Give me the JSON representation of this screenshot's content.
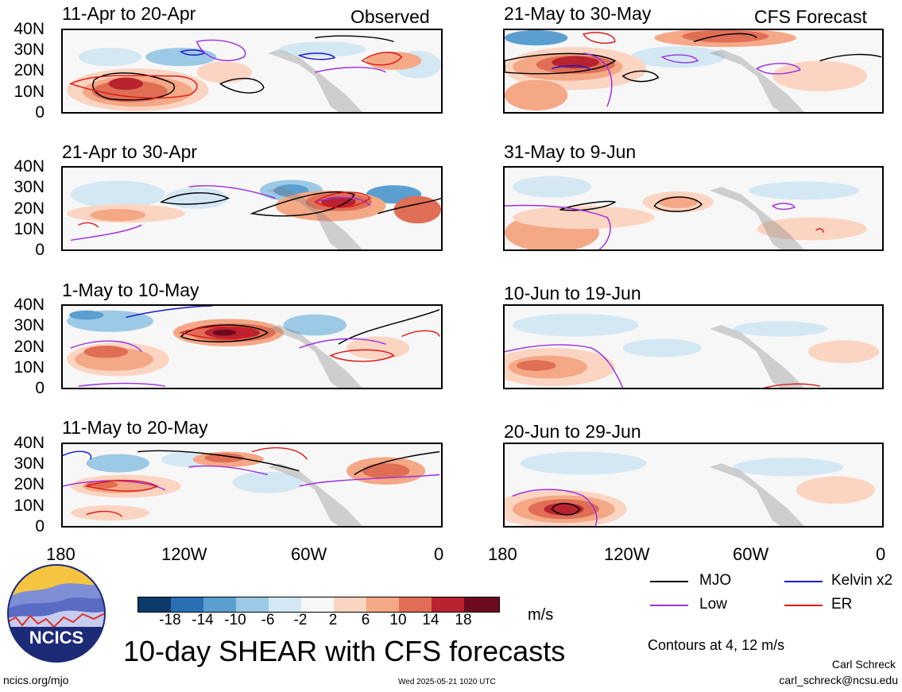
{
  "header": {
    "observed_label": "Observed",
    "forecast_label": "CFS Forecast"
  },
  "lat_labels": [
    "40N",
    "30N",
    "20N",
    "10N",
    "0"
  ],
  "lon_labels": [
    "180",
    "120W",
    "60W",
    "0"
  ],
  "panels_observed": [
    {
      "title": "11-Apr to 20-Apr"
    },
    {
      "title": "21-Apr to 30-Apr"
    },
    {
      "title": "1-May to 10-May"
    },
    {
      "title": "11-May to 20-May"
    }
  ],
  "panels_forecast": [
    {
      "title": "21-May to 30-May"
    },
    {
      "title": "31-May to 9-Jun"
    },
    {
      "title": "10-Jun to 19-Jun"
    },
    {
      "title": "20-Jun to 29-Jun"
    }
  ],
  "colors": {
    "mjo": "#000000",
    "kelvin": "#1a1ad0",
    "low": "#9b30e0",
    "er": "#e01818",
    "land": "#808080",
    "scale": [
      "#0b3a6b",
      "#2a6fb4",
      "#5a9fd0",
      "#9ccae6",
      "#d4e8f4",
      "#f7f7f7",
      "#fbd5c2",
      "#f4a886",
      "#df6e55",
      "#b8232f",
      "#6d0a1f"
    ]
  },
  "legend": {
    "mjo": "MJO",
    "kelvin": "Kelvin x2",
    "low": "Low",
    "er": "ER",
    "contours_note": "Contours at 4, 12 m/s"
  },
  "colorbar": {
    "labels": [
      "-18",
      "-14",
      "-10",
      "-6",
      "-2",
      "2",
      "6",
      "10",
      "14",
      "18"
    ],
    "units": "m/s"
  },
  "footer": {
    "logo_text": "NCICS",
    "main_title": "10-day SHEAR with CFS forecasts",
    "url": "ncics.org/mjo",
    "timestamp": "Wed 2025-05-21 1020 UTC",
    "author": "Carl Schreck",
    "email": "carl_schreck@ncsu.edu"
  }
}
